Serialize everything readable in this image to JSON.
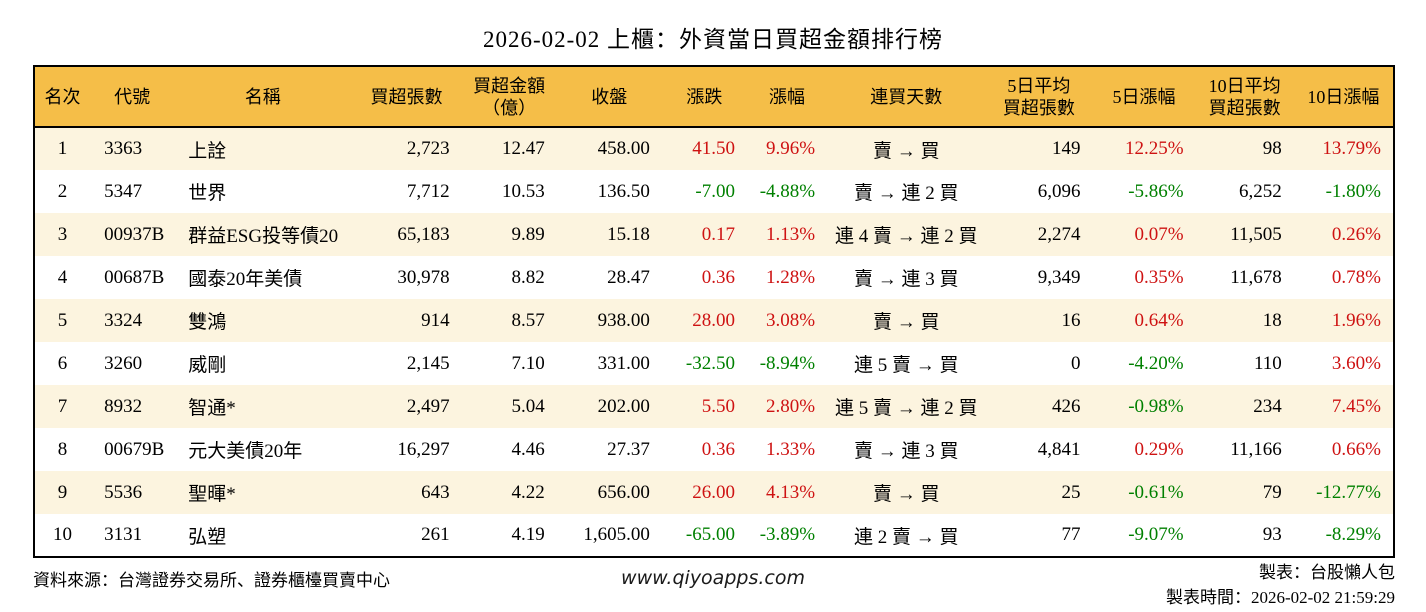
{
  "title": "2026-02-02 上櫃：外資當日買超金額排行榜",
  "colors": {
    "header_bg": "#F5BE48",
    "row_alt_bg": "#FCF4DF",
    "up_red": "#CE1212",
    "down_green": "#008000",
    "border": "#000000"
  },
  "table": {
    "columns": [
      {
        "key": "rank",
        "label": "名次",
        "align": "center",
        "width": 56
      },
      {
        "key": "code",
        "label": "代號",
        "align": "left",
        "width": 84
      },
      {
        "key": "name",
        "label": "名稱",
        "align": "left",
        "width": 177
      },
      {
        "key": "volume",
        "label": "買超張數",
        "align": "right",
        "width": 110
      },
      {
        "key": "amount",
        "label": "買超金額\n（億）",
        "align": "right",
        "width": 95
      },
      {
        "key": "close",
        "label": "收盤",
        "align": "right",
        "width": 105
      },
      {
        "key": "change",
        "label": "漲跌",
        "align": "right",
        "width": 85,
        "signed": true
      },
      {
        "key": "change_pct",
        "label": "漲幅",
        "align": "right",
        "width": 80,
        "signed": true
      },
      {
        "key": "streak",
        "label": "連買天數",
        "align": "center",
        "width": 158
      },
      {
        "key": "avg5",
        "label": "5日平均\n買超張數",
        "align": "right",
        "width": 107
      },
      {
        "key": "pct5",
        "label": "5日漲幅",
        "align": "right",
        "width": 103,
        "signed": true
      },
      {
        "key": "avg10",
        "label": "10日平均\n買超張數",
        "align": "right",
        "width": 98
      },
      {
        "key": "pct10",
        "label": "10日漲幅",
        "align": "right",
        "width": 100,
        "signed": true
      }
    ],
    "rows": [
      {
        "rank": "1",
        "code": "3363",
        "name": "上詮",
        "volume": "2,723",
        "amount": "12.47",
        "close": "458.00",
        "change": "41.50",
        "change_pct": "9.96%",
        "streak": "賣 → 買",
        "avg5": "149",
        "pct5": "12.25%",
        "avg10": "98",
        "pct10": "13.79%"
      },
      {
        "rank": "2",
        "code": "5347",
        "name": "世界",
        "volume": "7,712",
        "amount": "10.53",
        "close": "136.50",
        "change": "-7.00",
        "change_pct": "-4.88%",
        "streak": "賣 → 連 2 買",
        "avg5": "6,096",
        "pct5": "-5.86%",
        "avg10": "6,252",
        "pct10": "-1.80%"
      },
      {
        "rank": "3",
        "code": "00937B",
        "name": "群益ESG投等債20",
        "volume": "65,183",
        "amount": "9.89",
        "close": "15.18",
        "change": "0.17",
        "change_pct": "1.13%",
        "streak": "連 4 賣 → 連 2 買",
        "avg5": "2,274",
        "pct5": "0.07%",
        "avg10": "11,505",
        "pct10": "0.26%"
      },
      {
        "rank": "4",
        "code": "00687B",
        "name": "國泰20年美債",
        "volume": "30,978",
        "amount": "8.82",
        "close": "28.47",
        "change": "0.36",
        "change_pct": "1.28%",
        "streak": "賣 → 連 3 買",
        "avg5": "9,349",
        "pct5": "0.35%",
        "avg10": "11,678",
        "pct10": "0.78%"
      },
      {
        "rank": "5",
        "code": "3324",
        "name": "雙鴻",
        "volume": "914",
        "amount": "8.57",
        "close": "938.00",
        "change": "28.00",
        "change_pct": "3.08%",
        "streak": "賣 → 買",
        "avg5": "16",
        "pct5": "0.64%",
        "avg10": "18",
        "pct10": "1.96%"
      },
      {
        "rank": "6",
        "code": "3260",
        "name": "威剛",
        "volume": "2,145",
        "amount": "7.10",
        "close": "331.00",
        "change": "-32.50",
        "change_pct": "-8.94%",
        "streak": "連 5 賣 → 買",
        "avg5": "0",
        "pct5": "-4.20%",
        "avg10": "110",
        "pct10": "3.60%"
      },
      {
        "rank": "7",
        "code": "8932",
        "name": "智通*",
        "volume": "2,497",
        "amount": "5.04",
        "close": "202.00",
        "change": "5.50",
        "change_pct": "2.80%",
        "streak": "連 5 賣 → 連 2 買",
        "avg5": "426",
        "pct5": "-0.98%",
        "avg10": "234",
        "pct10": "7.45%"
      },
      {
        "rank": "8",
        "code": "00679B",
        "name": "元大美債20年",
        "volume": "16,297",
        "amount": "4.46",
        "close": "27.37",
        "change": "0.36",
        "change_pct": "1.33%",
        "streak": "賣 → 連 3 買",
        "avg5": "4,841",
        "pct5": "0.29%",
        "avg10": "11,166",
        "pct10": "0.66%"
      },
      {
        "rank": "9",
        "code": "5536",
        "name": "聖暉*",
        "volume": "643",
        "amount": "4.22",
        "close": "656.00",
        "change": "26.00",
        "change_pct": "4.13%",
        "streak": "賣 → 買",
        "avg5": "25",
        "pct5": "-0.61%",
        "avg10": "79",
        "pct10": "-12.77%"
      },
      {
        "rank": "10",
        "code": "3131",
        "name": "弘塑",
        "volume": "261",
        "amount": "4.19",
        "close": "1,605.00",
        "change": "-65.00",
        "change_pct": "-3.89%",
        "streak": "連 2 賣 → 買",
        "avg5": "77",
        "pct5": "-9.07%",
        "avg10": "93",
        "pct10": "-8.29%"
      }
    ]
  },
  "footer": {
    "source": "資料來源：台灣證券交易所、證券櫃檯買賣中心",
    "website": "www.qiyoapps.com",
    "made_by": "製表：台股懶人包",
    "made_time": "製表時間：2026-02-02 21:59:29"
  }
}
